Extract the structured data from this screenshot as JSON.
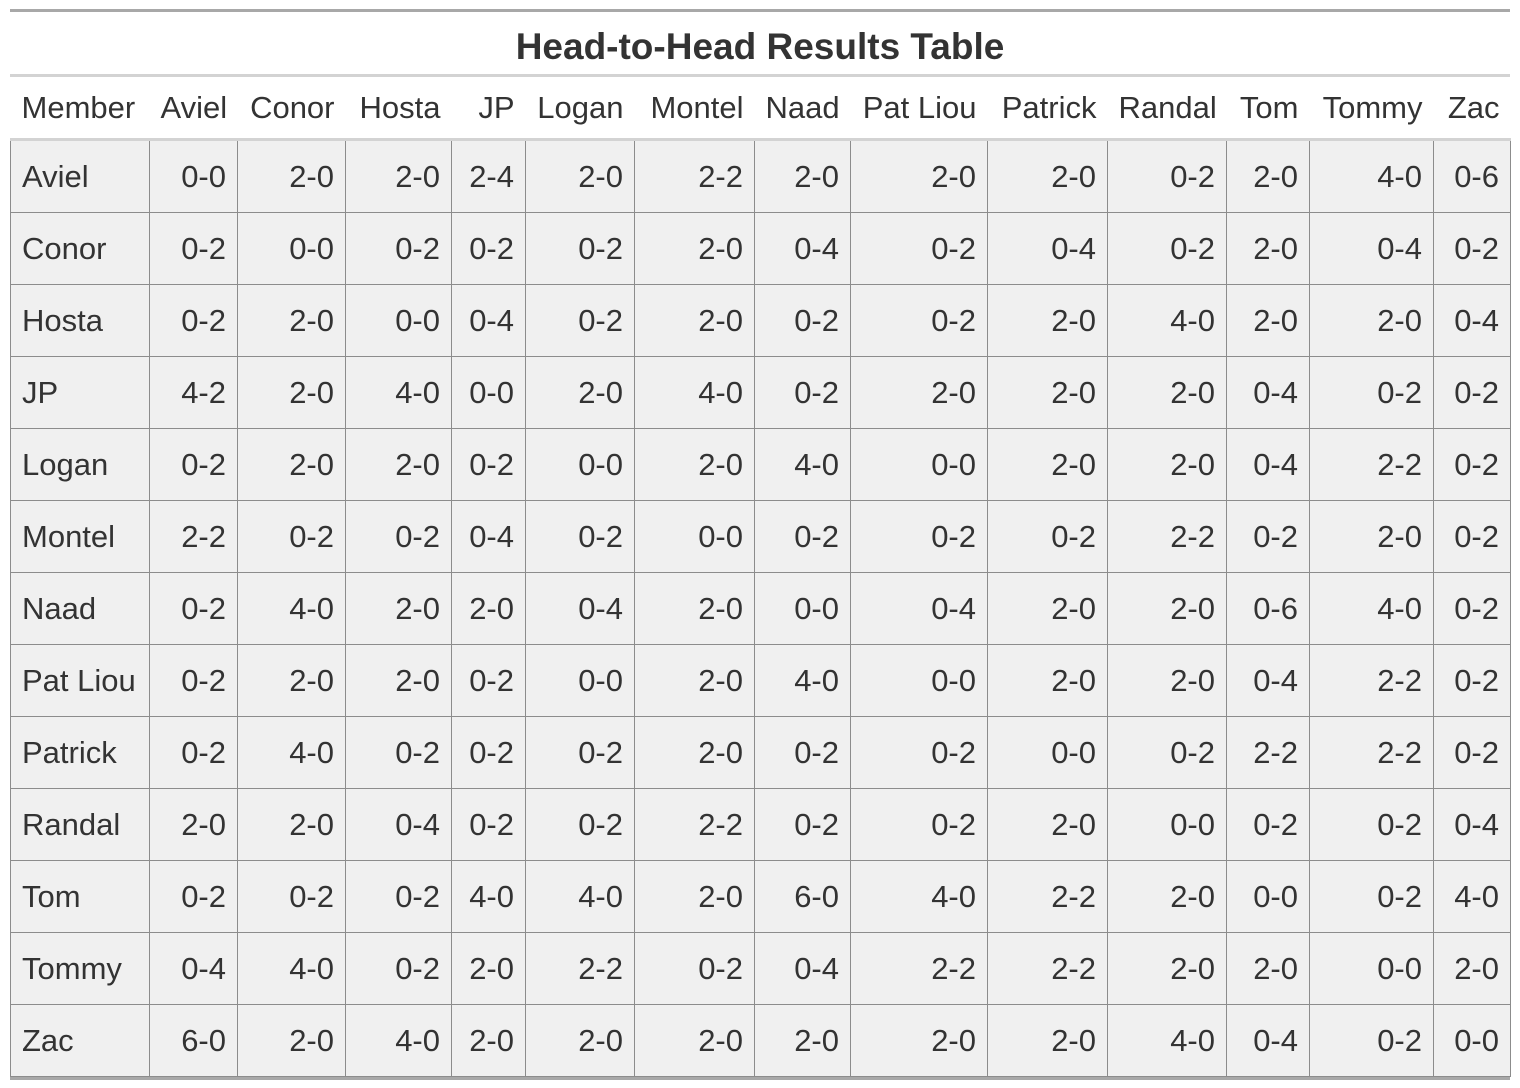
{
  "chart_data": {
    "type": "table",
    "title": "Head-to-Head Results Table",
    "columns": [
      "Member",
      "Aviel",
      "Conor",
      "Hosta",
      "JP",
      "Logan",
      "Montel",
      "Naad",
      "Pat Liou",
      "Patrick",
      "Randal",
      "Tom",
      "Tommy",
      "Zac"
    ],
    "rows": [
      {
        "member": "Aviel",
        "results": [
          "0-0",
          "2-0",
          "2-0",
          "2-4",
          "2-0",
          "2-2",
          "2-0",
          "2-0",
          "2-0",
          "0-2",
          "2-0",
          "4-0",
          "0-6"
        ]
      },
      {
        "member": "Conor",
        "results": [
          "0-2",
          "0-0",
          "0-2",
          "0-2",
          "0-2",
          "2-0",
          "0-4",
          "0-2",
          "0-4",
          "0-2",
          "2-0",
          "0-4",
          "0-2"
        ]
      },
      {
        "member": "Hosta",
        "results": [
          "0-2",
          "2-0",
          "0-0",
          "0-4",
          "0-2",
          "2-0",
          "0-2",
          "0-2",
          "2-0",
          "4-0",
          "2-0",
          "2-0",
          "0-4"
        ]
      },
      {
        "member": "JP",
        "results": [
          "4-2",
          "2-0",
          "4-0",
          "0-0",
          "2-0",
          "4-0",
          "0-2",
          "2-0",
          "2-0",
          "2-0",
          "0-4",
          "0-2",
          "0-2"
        ]
      },
      {
        "member": "Logan",
        "results": [
          "0-2",
          "2-0",
          "2-0",
          "0-2",
          "0-0",
          "2-0",
          "4-0",
          "0-0",
          "2-0",
          "2-0",
          "0-4",
          "2-2",
          "0-2"
        ]
      },
      {
        "member": "Montel",
        "results": [
          "2-2",
          "0-2",
          "0-2",
          "0-4",
          "0-2",
          "0-0",
          "0-2",
          "0-2",
          "0-2",
          "2-2",
          "0-2",
          "2-0",
          "0-2"
        ]
      },
      {
        "member": "Naad",
        "results": [
          "0-2",
          "4-0",
          "2-0",
          "2-0",
          "0-4",
          "2-0",
          "0-0",
          "0-4",
          "2-0",
          "2-0",
          "0-6",
          "4-0",
          "0-2"
        ]
      },
      {
        "member": "Pat Liou",
        "results": [
          "0-2",
          "2-0",
          "2-0",
          "0-2",
          "0-0",
          "2-0",
          "4-0",
          "0-0",
          "2-0",
          "2-0",
          "0-4",
          "2-2",
          "0-2"
        ]
      },
      {
        "member": "Patrick",
        "results": [
          "0-2",
          "4-0",
          "0-2",
          "0-2",
          "0-2",
          "2-0",
          "0-2",
          "0-2",
          "0-0",
          "0-2",
          "2-2",
          "2-2",
          "0-2"
        ]
      },
      {
        "member": "Randal",
        "results": [
          "2-0",
          "2-0",
          "0-4",
          "0-2",
          "0-2",
          "2-2",
          "0-2",
          "0-2",
          "2-0",
          "0-0",
          "0-2",
          "0-2",
          "0-4"
        ]
      },
      {
        "member": "Tom",
        "results": [
          "0-2",
          "0-2",
          "0-2",
          "4-0",
          "4-0",
          "2-0",
          "6-0",
          "4-0",
          "2-2",
          "2-0",
          "0-0",
          "0-2",
          "4-0"
        ]
      },
      {
        "member": "Tommy",
        "results": [
          "0-4",
          "4-0",
          "0-2",
          "2-0",
          "2-2",
          "0-2",
          "0-4",
          "2-2",
          "2-2",
          "2-0",
          "2-0",
          "0-0",
          "2-0"
        ]
      },
      {
        "member": "Zac",
        "results": [
          "6-0",
          "2-0",
          "4-0",
          "2-0",
          "2-0",
          "2-0",
          "2-0",
          "2-0",
          "2-0",
          "4-0",
          "0-4",
          "0-2",
          "0-0"
        ]
      }
    ]
  }
}
